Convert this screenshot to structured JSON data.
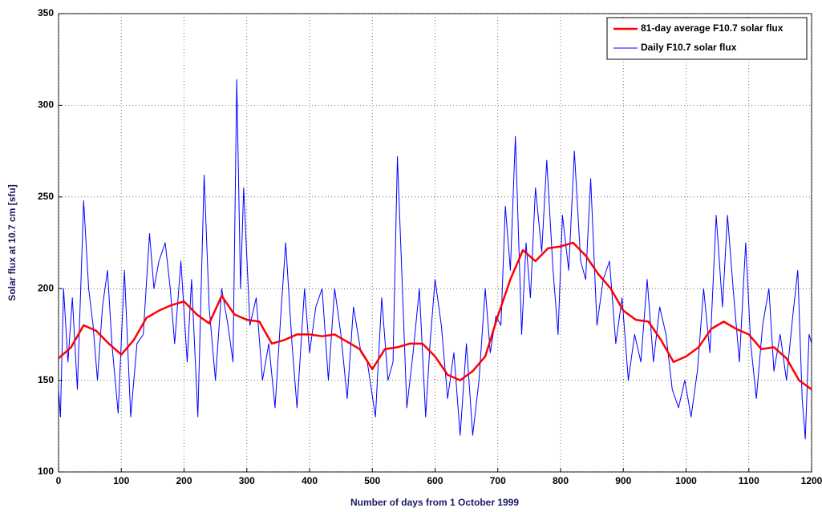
{
  "chart_data": {
    "type": "line",
    "xlabel": "Number of days from 1 October 1999",
    "ylabel": "Solar flux at 10.7 cm [sfu]",
    "xlim": [
      0,
      1200
    ],
    "xticks": [
      0,
      100,
      200,
      300,
      400,
      500,
      600,
      700,
      800,
      900,
      1000,
      1100,
      1200
    ],
    "ylim": [
      100,
      350
    ],
    "yticks": [
      100,
      150,
      200,
      250,
      300,
      350
    ],
    "grid": true,
    "legend": "upper right",
    "series": [
      {
        "name": "81-day average F10.7 solar flux",
        "color": "#ff0000",
        "width": 2.5,
        "x": [
          0,
          20,
          40,
          60,
          80,
          100,
          120,
          140,
          160,
          180,
          200,
          220,
          240,
          260,
          280,
          300,
          320,
          340,
          360,
          380,
          400,
          420,
          440,
          460,
          480,
          500,
          520,
          540,
          560,
          580,
          600,
          620,
          640,
          660,
          680,
          700,
          720,
          740,
          760,
          780,
          800,
          820,
          840,
          860,
          880,
          900,
          920,
          940,
          960,
          980,
          1000,
          1020,
          1040,
          1060,
          1080,
          1100,
          1120,
          1140,
          1160,
          1180,
          1200
        ],
        "values": [
          162,
          168,
          180,
          177,
          170,
          164,
          172,
          184,
          188,
          191,
          193,
          186,
          181,
          196,
          186,
          183,
          182,
          170,
          172,
          175,
          175,
          174,
          175,
          171,
          167,
          156,
          167,
          168,
          170,
          170,
          163,
          153,
          150,
          155,
          163,
          185,
          205,
          221,
          215,
          222,
          223,
          225,
          218,
          208,
          200,
          188,
          183,
          182,
          172,
          160,
          163,
          168,
          178,
          182,
          178,
          175,
          167,
          168,
          162,
          150,
          145
        ]
      },
      {
        "name": "Daily F10.7 solar flux",
        "color": "#0000ff",
        "width": 1,
        "x": [
          0,
          3,
          8,
          15,
          22,
          30,
          40,
          48,
          55,
          62,
          70,
          78,
          85,
          95,
          105,
          115,
          125,
          135,
          145,
          152,
          160,
          170,
          178,
          185,
          195,
          205,
          212,
          222,
          232,
          240,
          250,
          260,
          270,
          278,
          284,
          290,
          295,
          305,
          315,
          325,
          335,
          345,
          355,
          362,
          372,
          380,
          392,
          400,
          410,
          420,
          430,
          440,
          450,
          460,
          470,
          482,
          492,
          505,
          515,
          525,
          533,
          540,
          548,
          555,
          565,
          575,
          585,
          592,
          600,
          610,
          620,
          630,
          640,
          650,
          660,
          670,
          680,
          688,
          697,
          705,
          712,
          720,
          728,
          738,
          745,
          752,
          760,
          770,
          778,
          788,
          796,
          803,
          813,
          822,
          832,
          840,
          848,
          858,
          868,
          878,
          888,
          898,
          908,
          918,
          928,
          938,
          948,
          958,
          968,
          978,
          988,
          998,
          1008,
          1018,
          1028,
          1038,
          1048,
          1058,
          1066,
          1075,
          1085,
          1095,
          1103,
          1112,
          1122,
          1132,
          1140,
          1150,
          1160,
          1170,
          1178,
          1185,
          1190,
          1196,
          1200
        ],
        "values": [
          145,
          130,
          200,
          160,
          195,
          145,
          248,
          200,
          180,
          150,
          190,
          210,
          170,
          132,
          210,
          130,
          170,
          175,
          230,
          200,
          215,
          225,
          200,
          170,
          215,
          160,
          205,
          130,
          262,
          190,
          150,
          200,
          180,
          160,
          314,
          200,
          255,
          180,
          195,
          150,
          170,
          135,
          190,
          225,
          170,
          135,
          200,
          165,
          190,
          200,
          150,
          200,
          175,
          140,
          190,
          165,
          160,
          130,
          195,
          150,
          160,
          272,
          200,
          135,
          165,
          200,
          130,
          170,
          205,
          180,
          140,
          165,
          120,
          170,
          120,
          150,
          200,
          165,
          185,
          180,
          245,
          210,
          283,
          175,
          225,
          195,
          255,
          220,
          270,
          210,
          175,
          240,
          210,
          275,
          215,
          205,
          260,
          180,
          205,
          215,
          170,
          195,
          150,
          175,
          160,
          205,
          160,
          190,
          175,
          145,
          135,
          150,
          130,
          155,
          200,
          165,
          240,
          190,
          240,
          200,
          160,
          225,
          170,
          140,
          180,
          200,
          155,
          175,
          150,
          185,
          210,
          140,
          118,
          175,
          170
        ]
      }
    ]
  }
}
